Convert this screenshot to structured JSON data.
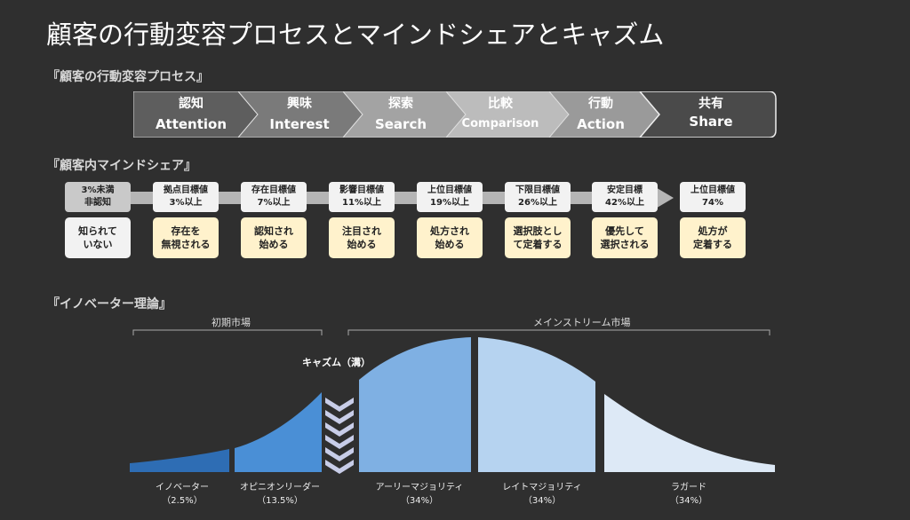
{
  "title": "顧客の行動変容プロセスとマインドシェアとキャズム",
  "sections": {
    "process": "『顧客の行動変容プロセス』",
    "mindshare": "『顧客内マインドシェア』",
    "innovator": "『イノベーター理論』"
  },
  "process_steps": [
    {
      "jp": "認知",
      "en": "Attention"
    },
    {
      "jp": "興味",
      "en": "Interest"
    },
    {
      "jp": "探索",
      "en": "Search"
    },
    {
      "jp": "比較",
      "en": "Comparison"
    },
    {
      "jp": "行動",
      "en": "Action"
    },
    {
      "jp": "共有",
      "en": "Share"
    }
  ],
  "mindshare": [
    {
      "pill": [
        "3%未満",
        "非認知"
      ],
      "card": [
        "知られて",
        "いない"
      ]
    },
    {
      "pill": [
        "拠点目標値",
        "3%以上"
      ],
      "card": [
        "存在を",
        "無視される"
      ]
    },
    {
      "pill": [
        "存在目標値",
        "7%以上"
      ],
      "card": [
        "認知され",
        "始める"
      ]
    },
    {
      "pill": [
        "影響目標値",
        "11%以上"
      ],
      "card": [
        "注目され",
        "始める"
      ]
    },
    {
      "pill": [
        "上位目標値",
        "19%以上"
      ],
      "card": [
        "処方され",
        "始める"
      ]
    },
    {
      "pill": [
        "下限目標値",
        "26%以上"
      ],
      "card": [
        "選択肢とし",
        "て定着する"
      ]
    },
    {
      "pill": [
        "安定目標",
        "42%以上"
      ],
      "card": [
        "優先して",
        "選択される"
      ]
    },
    {
      "pill": [
        "上位目標値",
        "74%"
      ],
      "card": [
        "処方が",
        "定着する"
      ]
    }
  ],
  "markets": {
    "early": "初期市場",
    "mainstream": "メインストリーム市場",
    "chasm": "キャズム（溝）"
  },
  "segments": [
    {
      "name": "イノベーター",
      "share": "（2.5%）",
      "value": 2.5
    },
    {
      "name": "オピニオンリーダー",
      "share": "（13.5%）",
      "value": 13.5
    },
    {
      "name": "アーリーマジョリティ",
      "share": "（34%）",
      "value": 34
    },
    {
      "name": "レイトマジョリティ",
      "share": "（34%）",
      "value": 34
    },
    {
      "name": "ラガード",
      "share": "（34%）",
      "value": 34
    }
  ],
  "colors": {
    "innovator": "#2e6db4",
    "opinion": "#4a8fd6",
    "early": "#7fb0e3",
    "late": "#b6d3f0",
    "laggard": "#dde9f6",
    "card": "#fff2cc"
  }
}
